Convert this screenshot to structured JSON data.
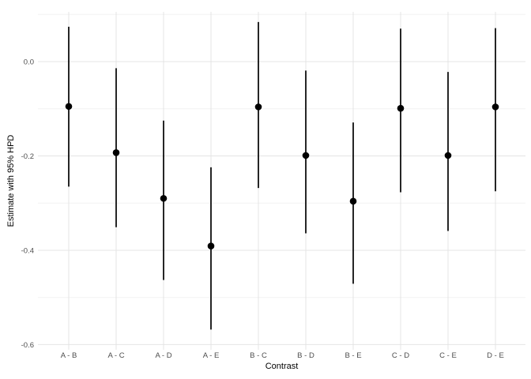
{
  "chart_data": {
    "type": "pointrange",
    "title": "",
    "xlabel": "Contrast",
    "ylabel": "Estimate with 95% HPD",
    "categories": [
      "A - B",
      "A - C",
      "A - D",
      "A - E",
      "B - C",
      "B - D",
      "B - E",
      "C - D",
      "C - E",
      "D - E"
    ],
    "series": [
      {
        "name": "estimate",
        "values": [
          -0.095,
          -0.193,
          -0.29,
          -0.391,
          -0.096,
          -0.199,
          -0.296,
          -0.099,
          -0.199,
          -0.096
        ]
      }
    ],
    "lower": [
      -0.265,
      -0.351,
      -0.463,
      -0.568,
      -0.268,
      -0.364,
      -0.471,
      -0.277,
      -0.359,
      -0.275
    ],
    "upper": [
      0.074,
      -0.014,
      -0.125,
      -0.224,
      0.084,
      -0.019,
      -0.129,
      0.07,
      -0.022,
      0.071
    ],
    "ylim": [
      -0.611,
      0.1055
    ],
    "yticks": [
      0.0,
      -0.2,
      -0.4,
      -0.6
    ],
    "ytick_labels": [
      "0.0",
      "-0.2",
      "-0.4",
      "-0.6"
    ],
    "minor_yticks": [
      0.1,
      -0.1,
      -0.3,
      -0.5
    ],
    "grid": true,
    "legend_position": "none",
    "colors": {
      "point": "#000000",
      "interval_line": "#000000",
      "grid_major": "#E4E4E4",
      "grid_minor": "#F2F2F2",
      "tick_label": "#4D4D4D",
      "axis_title": "#000000",
      "background": "#FFFFFF"
    }
  }
}
